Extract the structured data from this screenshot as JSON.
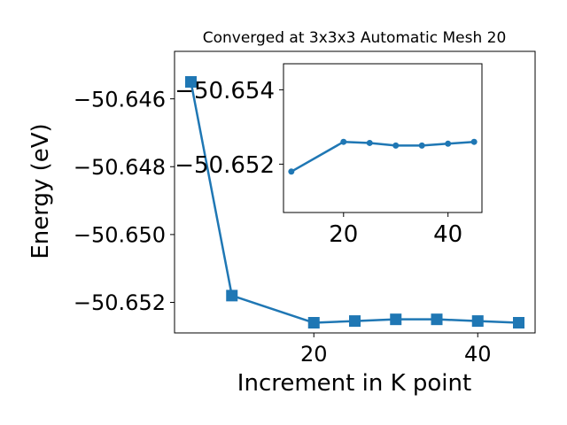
{
  "chart_data": [
    {
      "type": "line",
      "title": "Converged at 3x3x3 Automatic Mesh 20",
      "xlabel": "Increment in K point",
      "ylabel": "Energy (eV)",
      "xlim": [
        3,
        47
      ],
      "ylim": [
        -50.6529,
        -50.6446
      ],
      "xticks": [
        20,
        40
      ],
      "xtick_labels": [
        "20",
        "40"
      ],
      "yticks": [
        -50.646,
        -50.648,
        -50.65,
        -50.652
      ],
      "ytick_labels": [
        "−50.646",
        "−50.648",
        "−50.650",
        "−50.652"
      ],
      "grid": false,
      "marker": "square",
      "color": "#1f77b4",
      "series": [
        {
          "x": [
            5,
            10,
            20,
            25,
            30,
            35,
            40,
            45
          ],
          "y": [
            -50.6455,
            -50.6518,
            -50.6526,
            -50.65255,
            -50.6525,
            -50.6525,
            -50.65255,
            -50.6526
          ]
        }
      ]
    },
    {
      "type": "line",
      "title": "",
      "xlim": [
        8.5,
        46.5
      ],
      "ylim": [
        -50.6507,
        -50.6547
      ],
      "xticks": [
        20,
        40
      ],
      "xtick_labels": [
        "20",
        "40"
      ],
      "yticks": [
        -50.652,
        -50.654
      ],
      "ytick_labels": [
        "−50.652",
        "−50.654"
      ],
      "grid": false,
      "marker": "circle",
      "color": "#1f77b4",
      "series": [
        {
          "x": [
            10,
            20,
            25,
            30,
            35,
            40,
            45
          ],
          "y": [
            -50.6518,
            -50.6526,
            -50.65257,
            -50.6525,
            -50.6525,
            -50.65255,
            -50.6526
          ]
        }
      ]
    }
  ]
}
